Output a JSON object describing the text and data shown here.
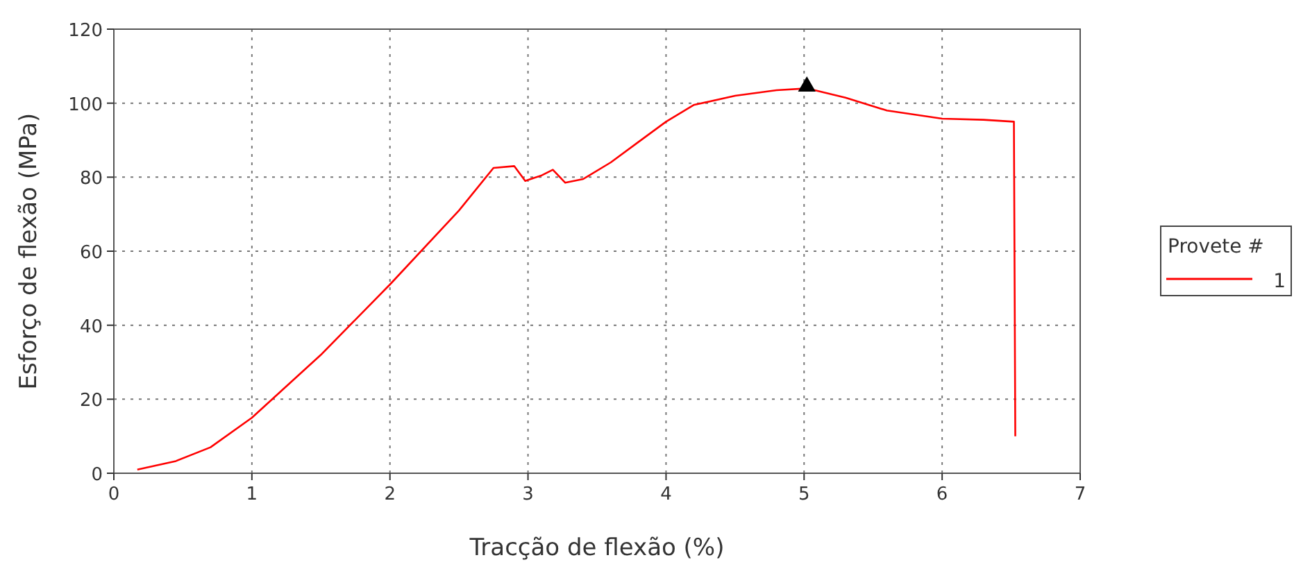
{
  "chart_data": {
    "type": "line",
    "xlabel": "Tracção de flexão (%)",
    "ylabel": "Esforço de flexão (MPa)",
    "legend_title": "Provete #",
    "legend": "right",
    "grid": true,
    "xlim": [
      0,
      7
    ],
    "xticks": [
      0,
      1,
      2,
      3,
      4,
      5,
      6,
      7
    ],
    "ylim": [
      0,
      120
    ],
    "yticks": [
      0,
      20,
      40,
      60,
      80,
      100,
      120
    ],
    "series": [
      {
        "name": "1",
        "color": "#ff0000",
        "x": [
          0.17,
          0.45,
          0.7,
          1,
          1.5,
          2,
          2.5,
          2.75,
          2.9,
          2.98,
          3.1,
          3.18,
          3.27,
          3.4,
          3.6,
          3.8,
          4,
          4.2,
          4.5,
          4.8,
          5.02,
          5.3,
          5.6,
          6,
          6.3,
          6.52,
          6.53
        ],
        "values": [
          1,
          3.3,
          7,
          15,
          32,
          51,
          71,
          82.5,
          83,
          79,
          80.5,
          82,
          78.5,
          79.5,
          84,
          89.5,
          95,
          99.5,
          102,
          103.5,
          104,
          101.5,
          98,
          95.8,
          95.5,
          95,
          10
        ]
      },
      {
        "type": "scatter",
        "marker": "triangle",
        "color": "#000000",
        "x": [
          5.02
        ],
        "values": [
          104.5
        ]
      }
    ]
  }
}
